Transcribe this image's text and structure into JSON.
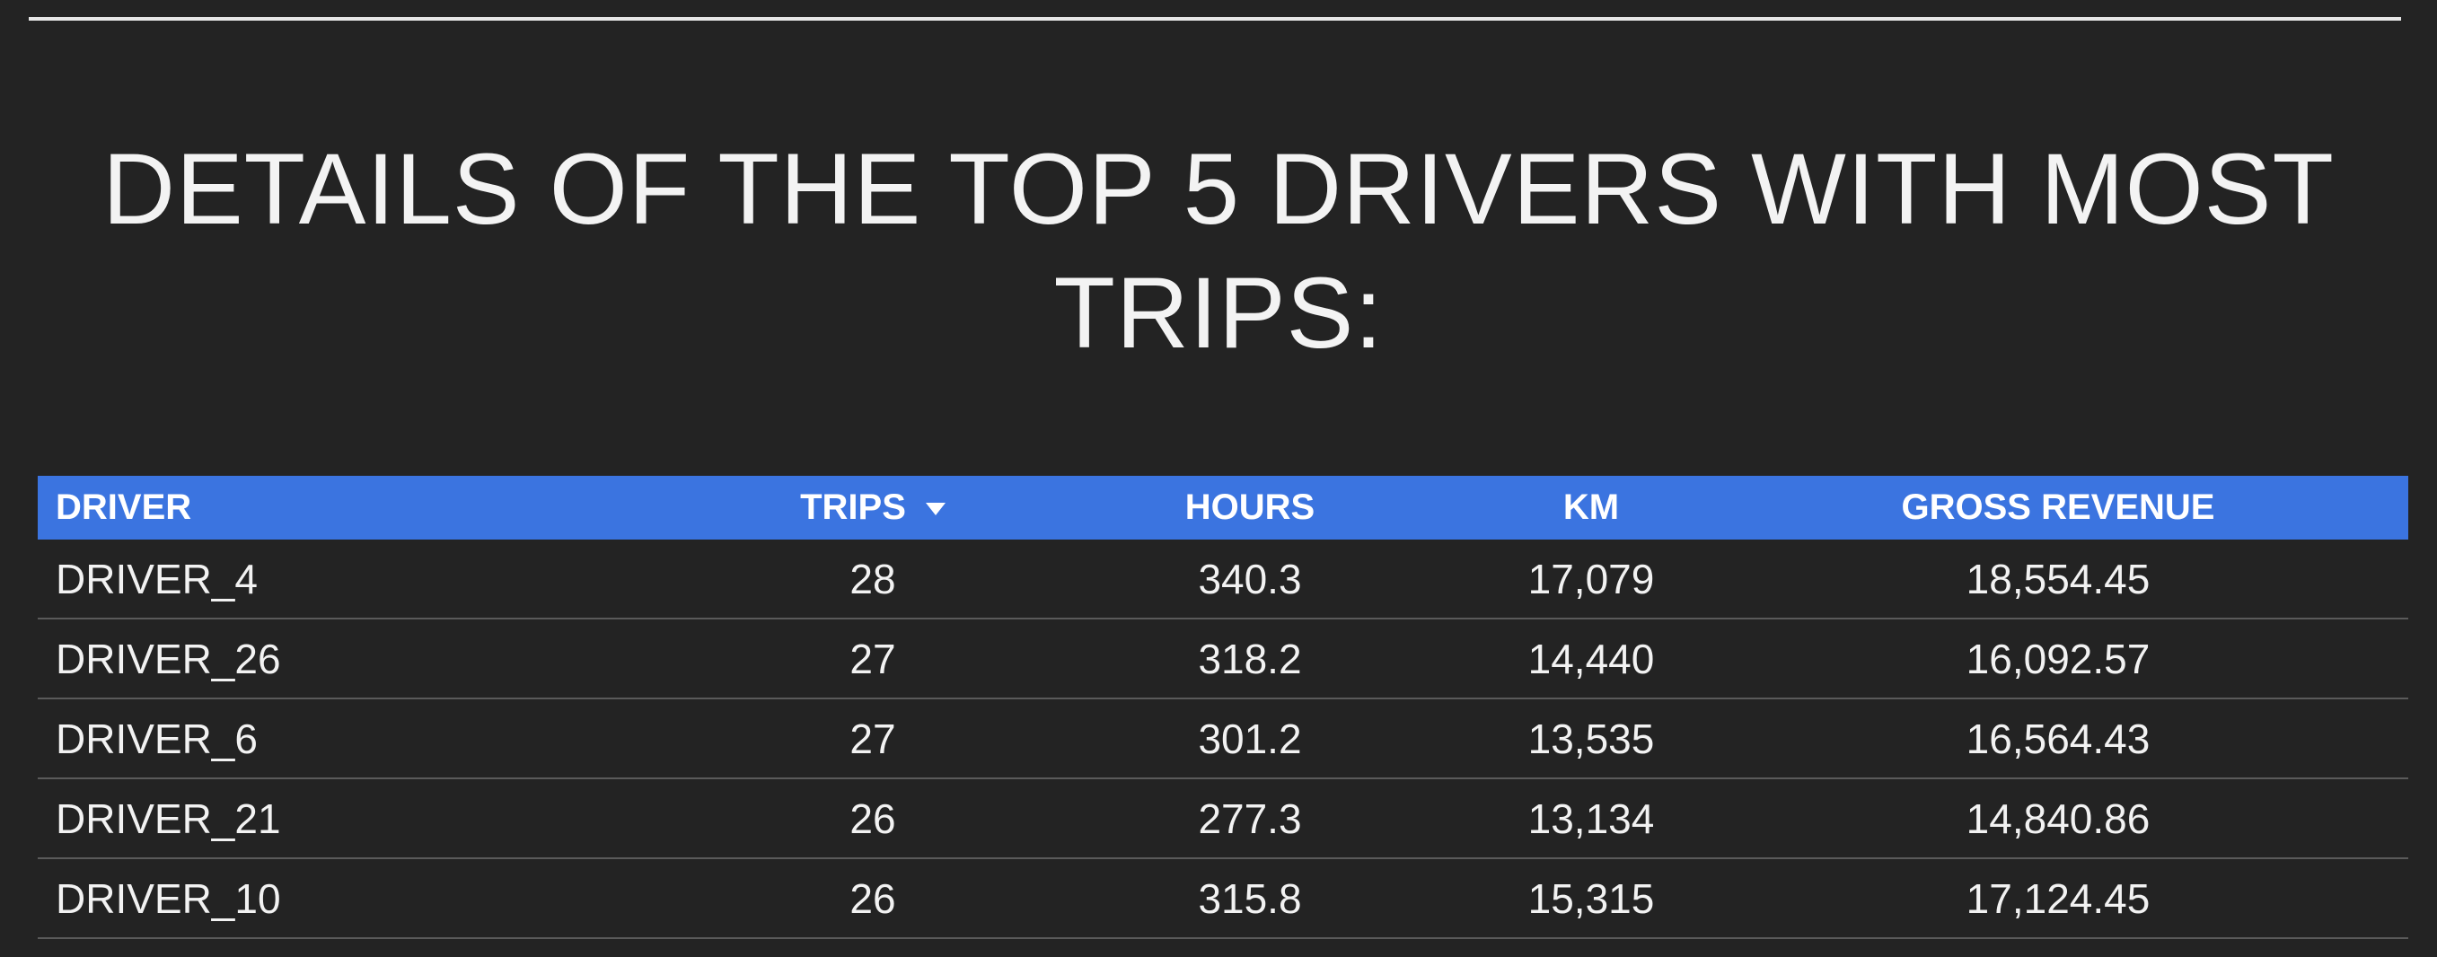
{
  "title": "DETAILS OF THE TOP 5 DRIVERS WITH MOST TRIPS:",
  "table": {
    "columns": [
      {
        "label": "DRIVER"
      },
      {
        "label": "TRIPS",
        "sort": "descending"
      },
      {
        "label": "HOURS"
      },
      {
        "label": "KM"
      },
      {
        "label": "GROSS REVENUE"
      }
    ],
    "rows": [
      {
        "driver": "DRIVER_4",
        "trips": "28",
        "hours": "340.3",
        "km": "17,079",
        "revenue": "18,554.45"
      },
      {
        "driver": "DRIVER_26",
        "trips": "27",
        "hours": "318.2",
        "km": "14,440",
        "revenue": "16,092.57"
      },
      {
        "driver": "DRIVER_6",
        "trips": "27",
        "hours": "301.2",
        "km": "13,535",
        "revenue": "16,564.43"
      },
      {
        "driver": "DRIVER_21",
        "trips": "26",
        "hours": "277.3",
        "km": "13,134",
        "revenue": "14,840.86"
      },
      {
        "driver": "DRIVER_10",
        "trips": "26",
        "hours": "315.8",
        "km": "15,315",
        "revenue": "17,124.45"
      }
    ]
  },
  "colors": {
    "background": "#232323",
    "header": "#3b74e0",
    "text": "#f2f2f2",
    "row_divider": "#5a5a5a"
  }
}
